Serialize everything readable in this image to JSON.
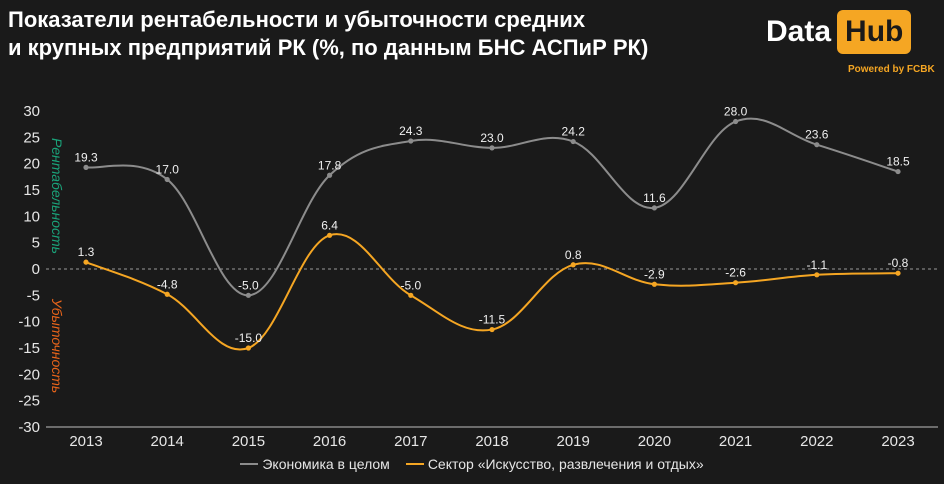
{
  "header": {
    "title": "Показатели рентабельности и убыточности средних\nи крупных предприятий РК (%, по данным БНС АСПиР РК)",
    "logo_data": "Data",
    "logo_hub": "Hub",
    "powered_by": "Powered by FCBK"
  },
  "colors": {
    "background": "#1a1a1a",
    "economy": "#8c8c8c",
    "sector": "#f5a623",
    "profit_label": "#1aa37a",
    "loss_label": "#e8641a"
  },
  "chart_data": {
    "type": "line",
    "x": [
      "2013",
      "2014",
      "2015",
      "2016",
      "2017",
      "2018",
      "2019",
      "2020",
      "2021",
      "2022",
      "2023"
    ],
    "ylim": [
      -30,
      30
    ],
    "yticks": [
      30,
      25,
      20,
      15,
      10,
      5,
      0,
      -5,
      -10,
      -15,
      -20,
      -25,
      -30
    ],
    "profit_axis_label": "Рентабельность",
    "loss_axis_label": "Убыточность",
    "legend_position": "bottom",
    "series": [
      {
        "name": "Экономика в целом",
        "values": [
          19.3,
          17.0,
          -5.0,
          17.8,
          24.3,
          23.0,
          24.2,
          11.6,
          28.0,
          23.6,
          18.5
        ],
        "labels": [
          "19.3",
          "17.0",
          "-5.0",
          "17.8",
          "24.3",
          "23.0",
          "24.2",
          "11.6",
          "28.0",
          "23.6",
          "18.5"
        ]
      },
      {
        "name": "Сектор «Искусство, развлечения и отдых»",
        "values": [
          1.3,
          -4.8,
          -15.0,
          6.4,
          -5.0,
          -11.5,
          0.8,
          -2.9,
          -2.6,
          -1.1,
          -0.8
        ],
        "labels": [
          "1.3",
          "-4.8",
          "-15.0",
          "6.4",
          "-5.0",
          "-11.5",
          "0.8",
          "-2.9",
          "-2.6",
          "-1.1",
          "-0.8"
        ]
      }
    ]
  }
}
